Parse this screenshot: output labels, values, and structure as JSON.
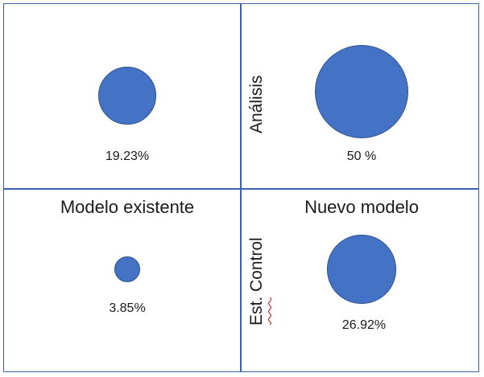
{
  "quadrants": [
    {
      "id": "top-left",
      "value_label": "19.23%",
      "value": 19.23
    },
    {
      "id": "top-right",
      "value_label": "50 %",
      "value": 50
    },
    {
      "id": "bottom-left",
      "value_label": "3.85%",
      "value": 3.85
    },
    {
      "id": "bottom-right",
      "value_label": "26.92%",
      "value": 26.92
    }
  ],
  "column_headers": {
    "left": "Modelo existente",
    "right": "Nuevo modelo"
  },
  "row_labels": {
    "top": "Análisis",
    "bottom": "Est. Control"
  },
  "colors": {
    "bubble_fill": "#4472c4",
    "bubble_stroke": "#2f528f",
    "grid_line": "#3a63ad",
    "spellcheck_underline": "#d0312d"
  }
}
